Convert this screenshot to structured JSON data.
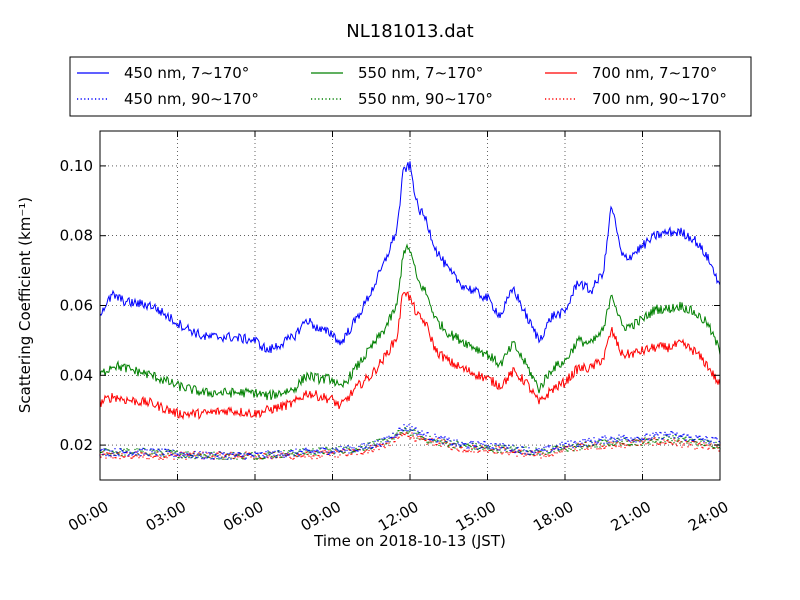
{
  "chart_data": {
    "type": "line",
    "title": "NL181013.dat",
    "xlabel": "Time on 2018-10-13 (JST)",
    "ylabel": "Scattering Coefficient (km⁻¹)",
    "x_unit": "hours",
    "xlim": [
      0,
      24
    ],
    "ylim": [
      0.01,
      0.11
    ],
    "x_ticks": [
      {
        "value": 0,
        "label": "00:00"
      },
      {
        "value": 3,
        "label": "03:00"
      },
      {
        "value": 6,
        "label": "06:00"
      },
      {
        "value": 9,
        "label": "09:00"
      },
      {
        "value": 12,
        "label": "12:00"
      },
      {
        "value": 15,
        "label": "15:00"
      },
      {
        "value": 18,
        "label": "18:00"
      },
      {
        "value": 21,
        "label": "21:00"
      },
      {
        "value": 24,
        "label": "24:00"
      }
    ],
    "y_ticks": [
      {
        "value": 0.02,
        "label": "0.02"
      },
      {
        "value": 0.04,
        "label": "0.04"
      },
      {
        "value": 0.06,
        "label": "0.06"
      },
      {
        "value": 0.08,
        "label": "0.08"
      },
      {
        "value": 0.1,
        "label": "0.10"
      }
    ],
    "grid": true,
    "legend_position": "top",
    "series": [
      {
        "name": "450 nm, 7∼170°",
        "color": "#0000ff",
        "style": "solid",
        "x": [
          0,
          0.5,
          1,
          2,
          3,
          4,
          5,
          6,
          6.5,
          7,
          7.5,
          8,
          8.5,
          9,
          9.3,
          10,
          10.5,
          11,
          11.5,
          11.75,
          12,
          12.3,
          12.6,
          13,
          13.5,
          14,
          15,
          15.5,
          16,
          16.5,
          17,
          17.5,
          18,
          18.5,
          19,
          19.5,
          19.8,
          20.2,
          20.5,
          21,
          21.5,
          22,
          22.5,
          23,
          23.5,
          24
        ],
        "y": [
          0.058,
          0.063,
          0.061,
          0.06,
          0.055,
          0.051,
          0.051,
          0.05,
          0.047,
          0.049,
          0.051,
          0.056,
          0.053,
          0.052,
          0.049,
          0.057,
          0.064,
          0.072,
          0.082,
          0.099,
          0.1,
          0.088,
          0.085,
          0.076,
          0.07,
          0.066,
          0.062,
          0.057,
          0.065,
          0.057,
          0.05,
          0.057,
          0.058,
          0.067,
          0.064,
          0.07,
          0.089,
          0.074,
          0.074,
          0.077,
          0.08,
          0.081,
          0.081,
          0.079,
          0.074,
          0.066
        ]
      },
      {
        "name": "450 nm, 90∼170°",
        "color": "#0000ff",
        "style": "dotted",
        "x": [
          0,
          2,
          4,
          6,
          8,
          10,
          11,
          11.75,
          12,
          12.5,
          13,
          14,
          15,
          16,
          17,
          18,
          19,
          20,
          21,
          22,
          23,
          24
        ],
        "y": [
          0.018,
          0.018,
          0.017,
          0.017,
          0.018,
          0.019,
          0.021,
          0.025,
          0.025,
          0.023,
          0.022,
          0.02,
          0.02,
          0.019,
          0.018,
          0.02,
          0.021,
          0.022,
          0.022,
          0.023,
          0.022,
          0.021
        ]
      },
      {
        "name": "550 nm, 7∼170°",
        "color": "#008000",
        "style": "solid",
        "x": [
          0,
          0.5,
          1,
          2,
          3,
          4,
          5,
          6,
          6.5,
          7,
          7.5,
          8,
          8.5,
          9,
          9.3,
          10,
          10.5,
          11,
          11.5,
          11.75,
          12,
          12.3,
          12.6,
          13,
          13.5,
          14,
          15,
          15.5,
          16,
          16.5,
          17,
          17.5,
          18,
          18.5,
          19,
          19.5,
          19.8,
          20.2,
          20.5,
          21,
          21.5,
          22,
          22.5,
          23,
          23.5,
          24
        ],
        "y": [
          0.04,
          0.043,
          0.042,
          0.04,
          0.037,
          0.035,
          0.035,
          0.035,
          0.034,
          0.035,
          0.036,
          0.04,
          0.039,
          0.039,
          0.036,
          0.043,
          0.048,
          0.053,
          0.06,
          0.076,
          0.076,
          0.067,
          0.064,
          0.056,
          0.052,
          0.05,
          0.046,
          0.043,
          0.049,
          0.043,
          0.036,
          0.042,
          0.044,
          0.05,
          0.049,
          0.053,
          0.064,
          0.054,
          0.054,
          0.056,
          0.059,
          0.059,
          0.06,
          0.058,
          0.055,
          0.047
        ]
      },
      {
        "name": "550 nm, 90∼170°",
        "color": "#008000",
        "style": "dotted",
        "x": [
          0,
          2,
          4,
          6,
          8,
          10,
          11,
          11.75,
          12,
          12.5,
          13,
          14,
          15,
          16,
          17,
          18,
          19,
          20,
          21,
          22,
          23,
          24
        ],
        "y": [
          0.018,
          0.018,
          0.017,
          0.017,
          0.018,
          0.019,
          0.021,
          0.024,
          0.024,
          0.022,
          0.021,
          0.02,
          0.019,
          0.019,
          0.018,
          0.019,
          0.02,
          0.021,
          0.021,
          0.022,
          0.021,
          0.02
        ]
      },
      {
        "name": "700 nm, 7∼170°",
        "color": "#ff0000",
        "style": "solid",
        "x": [
          0,
          0.5,
          1,
          2,
          3,
          4,
          5,
          6,
          6.5,
          7,
          7.5,
          8,
          8.5,
          9,
          9.3,
          10,
          10.5,
          11,
          11.5,
          11.75,
          12,
          12.3,
          12.6,
          13,
          13.5,
          14,
          15,
          15.5,
          16,
          16.5,
          17,
          17.5,
          18,
          18.5,
          19,
          19.5,
          19.8,
          20.2,
          20.5,
          21,
          21.5,
          22,
          22.5,
          23,
          23.5,
          24
        ],
        "y": [
          0.032,
          0.034,
          0.033,
          0.032,
          0.029,
          0.029,
          0.03,
          0.029,
          0.03,
          0.031,
          0.032,
          0.035,
          0.034,
          0.033,
          0.031,
          0.037,
          0.04,
          0.045,
          0.051,
          0.065,
          0.062,
          0.057,
          0.055,
          0.047,
          0.044,
          0.042,
          0.039,
          0.037,
          0.041,
          0.038,
          0.032,
          0.036,
          0.038,
          0.042,
          0.042,
          0.045,
          0.053,
          0.046,
          0.046,
          0.047,
          0.048,
          0.048,
          0.049,
          0.047,
          0.043,
          0.037
        ]
      },
      {
        "name": "700 nm, 90∼170°",
        "color": "#ff0000",
        "style": "dotted",
        "x": [
          0,
          2,
          4,
          6,
          8,
          10,
          11,
          11.75,
          12,
          12.5,
          13,
          14,
          15,
          16,
          17,
          18,
          19,
          20,
          21,
          22,
          23,
          24
        ],
        "y": [
          0.017,
          0.017,
          0.017,
          0.017,
          0.017,
          0.018,
          0.02,
          0.023,
          0.023,
          0.021,
          0.021,
          0.019,
          0.019,
          0.018,
          0.017,
          0.019,
          0.02,
          0.02,
          0.021,
          0.021,
          0.02,
          0.019
        ]
      }
    ]
  }
}
